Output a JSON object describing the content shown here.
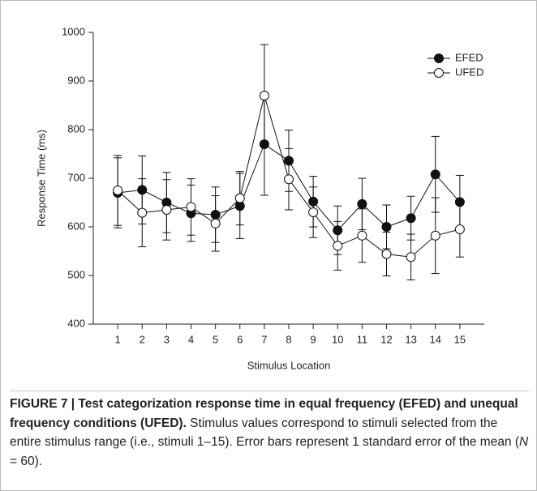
{
  "chart_data": {
    "type": "line",
    "xlabel": "Stimulus Location",
    "ylabel": "Response Time (ms)",
    "x": [
      1,
      2,
      3,
      4,
      5,
      6,
      7,
      8,
      9,
      10,
      11,
      12,
      13,
      14,
      15
    ],
    "xlim": [
      0,
      16
    ],
    "xticks": [
      1,
      2,
      3,
      4,
      5,
      6,
      7,
      8,
      9,
      10,
      11,
      12,
      13,
      14,
      15
    ],
    "ylim": [
      400,
      1000
    ],
    "yticks": [
      400,
      500,
      600,
      700,
      800,
      900,
      1000
    ],
    "legend": "upper right",
    "series": [
      {
        "name": "EFED",
        "color": "#111111",
        "marker": "filled",
        "values": [
          670,
          676,
          650,
          628,
          625,
          643,
          770,
          736,
          652,
          593,
          647,
          600,
          618,
          708,
          651
        ],
        "errors": [
          72,
          70,
          62,
          58,
          57,
          67,
          105,
          63,
          52,
          50,
          53,
          45,
          45,
          78,
          55
        ]
      },
      {
        "name": "UFED",
        "color": "#111111",
        "marker": "open",
        "values": [
          675,
          629,
          635,
          641,
          607,
          659,
          870,
          698,
          630,
          561,
          582,
          544,
          538,
          582,
          595
        ],
        "errors": [
          72,
          70,
          62,
          58,
          57,
          55,
          105,
          63,
          52,
          50,
          55,
          45,
          47,
          78,
          57
        ]
      }
    ]
  },
  "caption": {
    "bold": "FIGURE 7 | Test categorization response time in equal frequency (EFED) and unequal frequency conditions (UFED).",
    "text": " Stimulus values correspond to stimuli selected from the entire stimulus range (i.e., stimuli 1–15). Error bars represent 1 standard error of the mean (",
    "italic": "N",
    "end": " = 60)."
  }
}
